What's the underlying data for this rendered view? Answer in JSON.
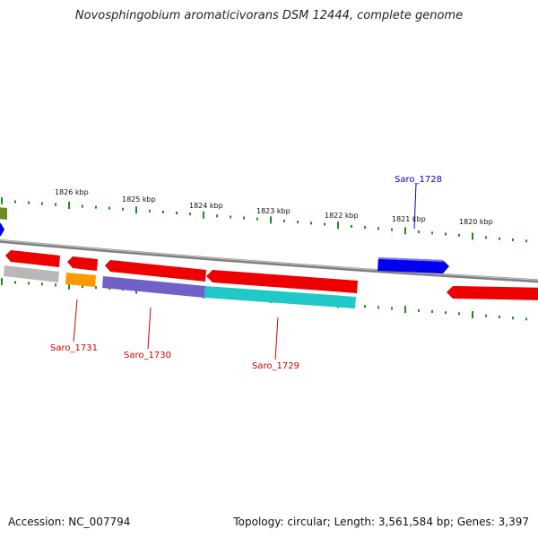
{
  "title": "Novosphingobium aromaticivorans DSM 12444, complete genome",
  "footer": {
    "accession": "Accession: NC_007794",
    "summary": "Topology: circular; Length: 3,561,584 bp; Genes: 3,397"
  },
  "scale_labels": [
    "1826 kbp",
    "1825 kbp",
    "1824 kbp",
    "1823 kbp",
    "1822 kbp",
    "1821 kbp",
    "1820 kbp"
  ],
  "gene_labels": [
    {
      "text": "Saro_1728",
      "color": "#0000cc"
    },
    {
      "text": "Saro_1731",
      "color": "#cc0000"
    },
    {
      "text": "Saro_1730",
      "color": "#cc0000"
    },
    {
      "text": "Saro_1729",
      "color": "#cc0000"
    }
  ],
  "colors": {
    "scale": "#1e8c1e",
    "backbone": "#808080",
    "forward_gene": "#0000ee",
    "reverse_gene": "#ee0000",
    "feature_green": "#6b8e23",
    "feature_gray": "#b8b8b8",
    "feature_orange": "#ff9900",
    "feature_purple": "#7060c8",
    "feature_cyan": "#20c8c8"
  }
}
